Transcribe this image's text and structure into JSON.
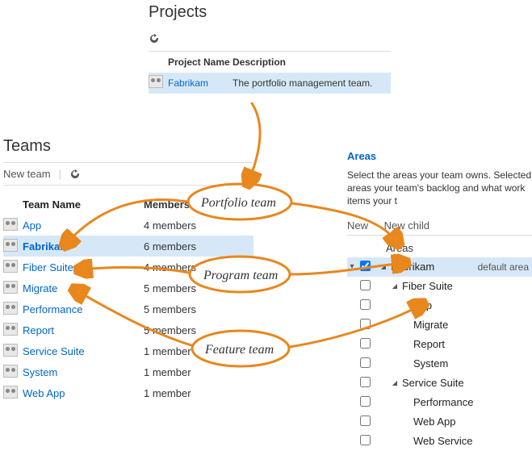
{
  "colors": {
    "accent": "#0066cc",
    "highlight_row": "#d6e8f8",
    "annotation": "#e8871e"
  },
  "projects": {
    "title": "Projects",
    "columns": {
      "name": "Project Name",
      "desc": "Description"
    },
    "row": {
      "name": "Fabrikam",
      "desc": "The portfolio management team."
    }
  },
  "teams": {
    "title": "Teams",
    "toolbar": {
      "new": "New team"
    },
    "columns": {
      "name": "Team Name",
      "members": "Members"
    },
    "rows": [
      {
        "name": "App",
        "members": "4 members",
        "selected": false
      },
      {
        "name": "Fabrikam",
        "members": "6 members",
        "selected": true
      },
      {
        "name": "Fiber Suite",
        "members": "4 members",
        "selected": false
      },
      {
        "name": "Migrate",
        "members": "5 members",
        "selected": false
      },
      {
        "name": "Performance",
        "members": "5 members",
        "selected": false
      },
      {
        "name": "Report",
        "members": "5 members",
        "selected": false
      },
      {
        "name": "Service Suite",
        "members": "1 member",
        "selected": false
      },
      {
        "name": "System",
        "members": "1 member",
        "selected": false
      },
      {
        "name": "Web App",
        "members": "1 member",
        "selected": false
      }
    ]
  },
  "areas": {
    "title": "Areas",
    "desc": "Select the areas your team owns. Selected areas your team's backlog and what work items your t",
    "toolbar": {
      "new": "New",
      "new_child": "New child"
    },
    "columns": {
      "areas": "Areas"
    },
    "tree": [
      {
        "label": "Fabrikam",
        "depth": 0,
        "checked": true,
        "caret": "down",
        "expander": "down",
        "selected": true,
        "tag": "default area"
      },
      {
        "label": "Fiber Suite",
        "depth": 1,
        "checked": false,
        "caret": "down"
      },
      {
        "label": "App",
        "depth": 2,
        "checked": false
      },
      {
        "label": "Migrate",
        "depth": 2,
        "checked": false
      },
      {
        "label": "Report",
        "depth": 2,
        "checked": false
      },
      {
        "label": "System",
        "depth": 2,
        "checked": false
      },
      {
        "label": "Service Suite",
        "depth": 1,
        "checked": false,
        "caret": "down"
      },
      {
        "label": "Performance",
        "depth": 2,
        "checked": false
      },
      {
        "label": "Web App",
        "depth": 2,
        "checked": false
      },
      {
        "label": "Web Service",
        "depth": 2,
        "checked": false
      }
    ]
  },
  "annotations": {
    "portfolio": "Portfolio team",
    "program": "Program team",
    "feature": "Feature team"
  }
}
